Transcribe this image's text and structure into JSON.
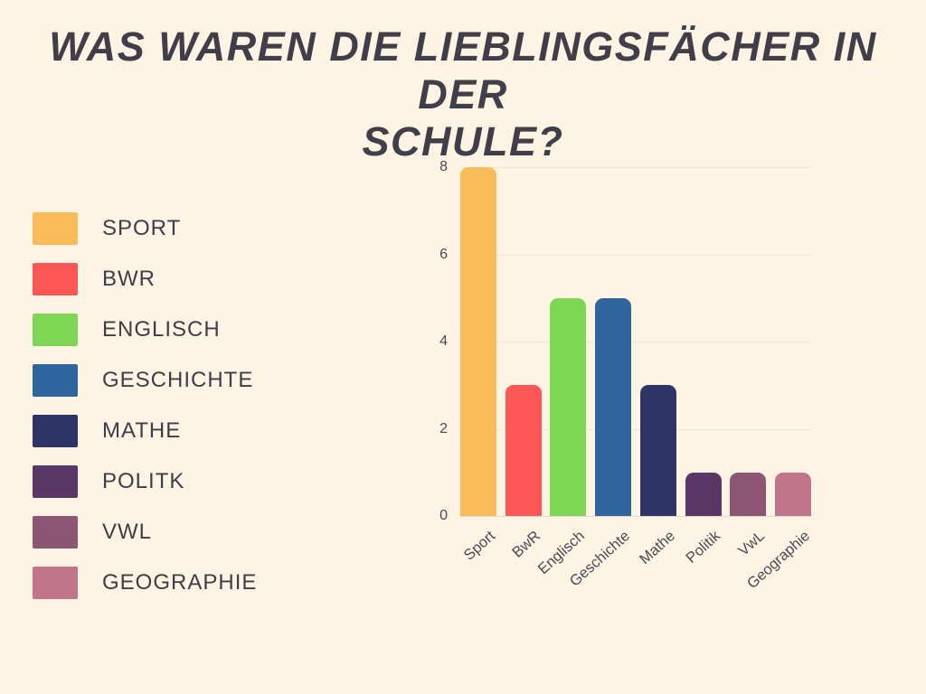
{
  "title_lines": [
    "WAS WAREN DIE LIEBLINGSFÄCHER IN DER",
    "SCHULE?"
  ],
  "colors": {
    "background": "#FDF4E3",
    "title": "#413E4A",
    "legend_text": "#3F3C49",
    "tick_text": "#4C4956",
    "gridline": "#ECE5D6"
  },
  "legend": [
    {
      "label": "SPORT",
      "color": "#FBBB59"
    },
    {
      "label": "BWR",
      "color": "#FB5757"
    },
    {
      "label": "ENGLISCH",
      "color": "#7DD755"
    },
    {
      "label": "GESCHICHTE",
      "color": "#30649C"
    },
    {
      "label": "MATHE",
      "color": "#2E3468"
    },
    {
      "label": "POLITK",
      "color": "#5B3765"
    },
    {
      "label": "VWL",
      "color": "#8E5675"
    },
    {
      "label": "GEOGRAPHIE",
      "color": "#C0758B"
    }
  ],
  "chart_data": {
    "type": "bar",
    "title": "WAS WAREN DIE LIEBLINGSFÄCHER IN DER SCHULE?",
    "categories": [
      "Sport",
      "BwR",
      "Englisch",
      "Geschichte",
      "Mathe",
      "Politik",
      "VwL",
      "Geographie"
    ],
    "values": [
      8,
      3,
      5,
      5,
      3,
      1,
      1,
      1
    ],
    "bar_colors": [
      "#FBBB59",
      "#FB5757",
      "#7DD755",
      "#30649C",
      "#2E3468",
      "#5B3765",
      "#8E5675",
      "#C0758B"
    ],
    "xlabel": "",
    "ylabel": "",
    "yticks": [
      0,
      2,
      4,
      6,
      8
    ],
    "ylim": [
      0,
      8
    ],
    "grid": true,
    "legend_position": "left"
  }
}
